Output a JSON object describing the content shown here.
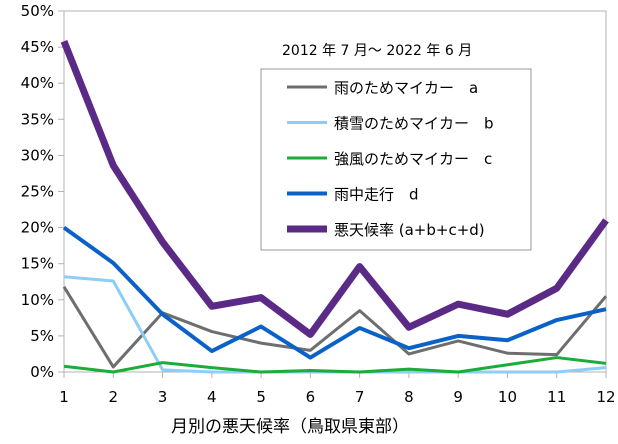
{
  "chart_data": {
    "type": "line",
    "title": "",
    "annotation": "2012 年 7 月～ 2022 年 6 月",
    "xlabel": "月別の悪天候率（鳥取県東部）",
    "ylabel": "",
    "x": [
      1,
      2,
      3,
      4,
      5,
      6,
      7,
      8,
      9,
      10,
      11,
      12
    ],
    "x_tick_labels": [
      "1",
      "2",
      "3",
      "4",
      "5",
      "6",
      "7",
      "8",
      "9",
      "10",
      "11",
      "12"
    ],
    "ylim": [
      0,
      50
    ],
    "y_tick_labels": [
      "0%",
      "5%",
      "10%",
      "15%",
      "20%",
      "25%",
      "30%",
      "35%",
      "40%",
      "45%",
      "50%"
    ],
    "y_unit": "%",
    "grid": false,
    "legend_position": "upper-right",
    "series": [
      {
        "name": "雨のためマイカー　a",
        "color": "#6e6e6e",
        "stroke": 3,
        "values": [
          11.8,
          0.7,
          8.2,
          5.6,
          4.0,
          3.0,
          8.5,
          2.5,
          4.3,
          2.6,
          2.4,
          10.5
        ]
      },
      {
        "name": "積雪のためマイカー　b",
        "color": "#8ecdf7",
        "stroke": 3,
        "values": [
          13.2,
          12.6,
          0.3,
          0.0,
          0.0,
          0.0,
          0.0,
          0.0,
          0.0,
          0.0,
          0.0,
          0.6
        ]
      },
      {
        "name": "強風のためマイカー　c",
        "color": "#1aad3a",
        "stroke": 3,
        "values": [
          0.8,
          0.0,
          1.3,
          0.6,
          0.0,
          0.2,
          0.0,
          0.4,
          0.0,
          1.0,
          2.0,
          1.2
        ]
      },
      {
        "name": "雨中走行　d",
        "color": "#0a62c9",
        "stroke": 4,
        "values": [
          20.0,
          15.1,
          8.0,
          2.9,
          6.3,
          2.0,
          6.1,
          3.3,
          5.0,
          4.4,
          7.2,
          8.7
        ]
      },
      {
        "name": "悪天候率 (a+b+c+d)",
        "color": "#5a2a86",
        "stroke": 7,
        "values": [
          45.8,
          28.6,
          18.0,
          9.1,
          10.3,
          5.2,
          14.6,
          6.2,
          9.4,
          8.0,
          11.6,
          21.0
        ]
      }
    ]
  }
}
